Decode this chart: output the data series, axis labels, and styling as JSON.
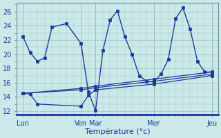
{
  "background_color": "#cce8e8",
  "grid_color": "#a0c8c8",
  "line_color": "#1a3a9a",
  "xlabel": "Température (°c)",
  "x_ticks_pos": [
    0,
    48,
    60,
    108,
    156
  ],
  "x_tick_labels": [
    "Lun",
    "Ven",
    "Mar",
    "Mer",
    "Jeu"
  ],
  "ylim": [
    11.5,
    27.2
  ],
  "yticks": [
    12,
    14,
    16,
    18,
    20,
    22,
    24,
    26
  ],
  "lines": [
    {
      "x": [
        0,
        6,
        12,
        18,
        24,
        36,
        48,
        54,
        60,
        66,
        72,
        78,
        84,
        90,
        96,
        102,
        108,
        114,
        120,
        126,
        132,
        138,
        144,
        150,
        156
      ],
      "y": [
        22.5,
        20.2,
        19.0,
        19.5,
        23.8,
        24.3,
        21.5,
        14.7,
        12.1,
        20.5,
        24.8,
        26.1,
        22.5,
        20.0,
        17.0,
        16.2,
        16.1,
        17.2,
        19.3,
        25.0,
        26.5,
        23.5,
        19.0,
        17.5,
        17.5
      ]
    },
    {
      "x": [
        0,
        48,
        60,
        108,
        156
      ],
      "y": [
        14.5,
        15.2,
        15.5,
        16.5,
        17.5
      ]
    },
    {
      "x": [
        0,
        48,
        60,
        108,
        156
      ],
      "y": [
        14.5,
        15.0,
        15.3,
        16.2,
        17.2
      ]
    },
    {
      "x": [
        0,
        6,
        12,
        48,
        54,
        60,
        108,
        156
      ],
      "y": [
        14.5,
        14.4,
        13.0,
        12.7,
        14.2,
        15.0,
        15.8,
        17.0
      ]
    }
  ]
}
